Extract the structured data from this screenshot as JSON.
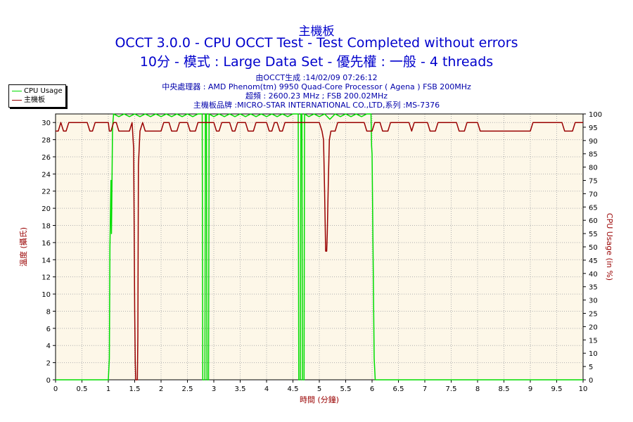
{
  "titles": {
    "line1": "主機板",
    "line2": "OCCT 3.0.0 - CPU OCCT Test - Test Completed without errors",
    "line3": "10分 - 模式 : Large Data Set - 優先權 : 一般 - 4 threads"
  },
  "info": {
    "line1": "由OCCT生成 :14/02/09 07:26:12",
    "line2": "中央處理器 : AMD Phenom(tm) 9950 Quad-Core Processor ( Agena ) FSB 200MHz",
    "line3": "超頻 : 2600.23 MHz ; FSB 200.02MHz",
    "line4": "主機板品牌 :MICRO-STAR INTERNATIONAL CO.,LTD,系列 :MS-7376"
  },
  "legend": {
    "cpu_usage": "CPU Usage",
    "motherboard": "主機板"
  },
  "colors": {
    "title": "#0000cc",
    "info": "#0000aa",
    "cpu_series": "#00dd00",
    "temp_series": "#990000",
    "plot_bg": "#fdf7e8",
    "grid": "#b0b0b0",
    "axis_title": "#990000"
  },
  "chart_data": {
    "type": "line",
    "xlabel": "時間 (分鐘)",
    "ylabel_left": "溫度 (攝氏)",
    "ylabel_right": "CPU Usage (in %)",
    "xlim": [
      0,
      10
    ],
    "ylim_left": [
      0,
      31
    ],
    "ylim_right": [
      0,
      100
    ],
    "x_ticks": [
      "0",
      "0.5",
      "1",
      "1.5",
      "2",
      "2.5",
      "3",
      "3.5",
      "4",
      "4.5",
      "5",
      "5.5",
      "6",
      "6.5",
      "7",
      "7.5",
      "8",
      "8.5",
      "9",
      "9.5",
      "10"
    ],
    "y_ticks_left": [
      "0",
      "2",
      "4",
      "6",
      "8",
      "10",
      "12",
      "14",
      "16",
      "18",
      "20",
      "22",
      "24",
      "26",
      "28",
      "30"
    ],
    "y_ticks_right": [
      "0",
      "5",
      "10",
      "15",
      "20",
      "25",
      "30",
      "35",
      "40",
      "45",
      "50",
      "55",
      "60",
      "65",
      "70",
      "75",
      "80",
      "85",
      "90",
      "95",
      "100"
    ],
    "grid": true,
    "legend_position": "top-left",
    "series": [
      {
        "name": "CPU Usage",
        "axis": "right",
        "points": [
          [
            0,
            0
          ],
          [
            1.0,
            0
          ],
          [
            1.02,
            8
          ],
          [
            1.03,
            50
          ],
          [
            1.05,
            75
          ],
          [
            1.06,
            55
          ],
          [
            1.08,
            95
          ],
          [
            1.1,
            100
          ],
          [
            1.2,
            99
          ],
          [
            1.3,
            100
          ],
          [
            1.4,
            99
          ],
          [
            1.5,
            100
          ],
          [
            1.6,
            99
          ],
          [
            1.7,
            100
          ],
          [
            1.8,
            99
          ],
          [
            1.9,
            100
          ],
          [
            2.0,
            99
          ],
          [
            2.1,
            100
          ],
          [
            2.2,
            99
          ],
          [
            2.3,
            100
          ],
          [
            2.4,
            99
          ],
          [
            2.5,
            100
          ],
          [
            2.6,
            99
          ],
          [
            2.7,
            100
          ],
          [
            2.78,
            100
          ],
          [
            2.79,
            0
          ],
          [
            2.83,
            0
          ],
          [
            2.84,
            100
          ],
          [
            2.86,
            100
          ],
          [
            2.87,
            0
          ],
          [
            2.9,
            0
          ],
          [
            2.91,
            100
          ],
          [
            3.0,
            99
          ],
          [
            3.1,
            100
          ],
          [
            3.2,
            99
          ],
          [
            3.3,
            100
          ],
          [
            3.4,
            99
          ],
          [
            3.5,
            100
          ],
          [
            3.6,
            99
          ],
          [
            3.7,
            100
          ],
          [
            3.8,
            99
          ],
          [
            3.9,
            100
          ],
          [
            4.0,
            99
          ],
          [
            4.1,
            100
          ],
          [
            4.2,
            99
          ],
          [
            4.3,
            100
          ],
          [
            4.4,
            99
          ],
          [
            4.5,
            100
          ],
          [
            4.6,
            100
          ],
          [
            4.61,
            0
          ],
          [
            4.64,
            0
          ],
          [
            4.65,
            100
          ],
          [
            4.67,
            100
          ],
          [
            4.68,
            0
          ],
          [
            4.71,
            0
          ],
          [
            4.72,
            100
          ],
          [
            4.8,
            99
          ],
          [
            4.9,
            100
          ],
          [
            5.0,
            99
          ],
          [
            5.1,
            100
          ],
          [
            5.2,
            98
          ],
          [
            5.3,
            100
          ],
          [
            5.4,
            99
          ],
          [
            5.5,
            100
          ],
          [
            5.6,
            99
          ],
          [
            5.7,
            100
          ],
          [
            5.8,
            99
          ],
          [
            5.9,
            100
          ],
          [
            5.98,
            100
          ],
          [
            5.99,
            88
          ],
          [
            6.0,
            85
          ],
          [
            6.04,
            8
          ],
          [
            6.06,
            0
          ],
          [
            10,
            0
          ]
        ]
      },
      {
        "name": "主機板",
        "axis": "left",
        "points": [
          [
            0,
            29
          ],
          [
            0.05,
            29
          ],
          [
            0.1,
            30
          ],
          [
            0.15,
            29
          ],
          [
            0.2,
            29
          ],
          [
            0.25,
            30
          ],
          [
            0.3,
            30
          ],
          [
            0.6,
            30
          ],
          [
            0.65,
            29
          ],
          [
            0.7,
            29
          ],
          [
            0.75,
            30
          ],
          [
            1.0,
            30
          ],
          [
            1.02,
            29
          ],
          [
            1.05,
            29
          ],
          [
            1.1,
            30
          ],
          [
            1.15,
            30
          ],
          [
            1.2,
            29
          ],
          [
            1.4,
            29
          ],
          [
            1.45,
            30
          ],
          [
            1.48,
            27
          ],
          [
            1.5,
            8
          ],
          [
            1.51,
            2
          ],
          [
            1.52,
            0
          ],
          [
            1.55,
            0
          ],
          [
            1.56,
            5
          ],
          [
            1.57,
            25
          ],
          [
            1.6,
            29
          ],
          [
            1.65,
            30
          ],
          [
            1.7,
            29
          ],
          [
            2.0,
            29
          ],
          [
            2.05,
            30
          ],
          [
            2.15,
            30
          ],
          [
            2.2,
            29
          ],
          [
            2.3,
            29
          ],
          [
            2.35,
            30
          ],
          [
            2.5,
            30
          ],
          [
            2.55,
            29
          ],
          [
            2.65,
            29
          ],
          [
            2.7,
            30
          ],
          [
            3.0,
            30
          ],
          [
            3.05,
            29
          ],
          [
            3.1,
            29
          ],
          [
            3.15,
            30
          ],
          [
            3.3,
            30
          ],
          [
            3.35,
            29
          ],
          [
            3.4,
            29
          ],
          [
            3.45,
            30
          ],
          [
            3.6,
            30
          ],
          [
            3.65,
            29
          ],
          [
            3.75,
            29
          ],
          [
            3.8,
            30
          ],
          [
            4.0,
            30
          ],
          [
            4.05,
            29
          ],
          [
            4.1,
            29
          ],
          [
            4.15,
            30
          ],
          [
            4.2,
            30
          ],
          [
            4.25,
            29
          ],
          [
            4.3,
            29
          ],
          [
            4.35,
            30
          ],
          [
            5.0,
            30
          ],
          [
            5.05,
            29
          ],
          [
            5.08,
            28
          ],
          [
            5.1,
            22
          ],
          [
            5.12,
            15
          ],
          [
            5.14,
            15
          ],
          [
            5.15,
            17
          ],
          [
            5.17,
            23
          ],
          [
            5.19,
            28
          ],
          [
            5.22,
            29
          ],
          [
            5.3,
            29
          ],
          [
            5.35,
            30
          ],
          [
            5.85,
            30
          ],
          [
            5.9,
            29
          ],
          [
            6.0,
            29
          ],
          [
            6.05,
            30
          ],
          [
            6.15,
            30
          ],
          [
            6.2,
            29
          ],
          [
            6.3,
            29
          ],
          [
            6.35,
            30
          ],
          [
            6.7,
            30
          ],
          [
            6.75,
            29
          ],
          [
            6.8,
            30
          ],
          [
            7.05,
            30
          ],
          [
            7.1,
            29
          ],
          [
            7.2,
            29
          ],
          [
            7.25,
            30
          ],
          [
            7.6,
            30
          ],
          [
            7.65,
            29
          ],
          [
            7.75,
            29
          ],
          [
            7.8,
            30
          ],
          [
            8.0,
            30
          ],
          [
            8.05,
            29
          ],
          [
            9.0,
            29
          ],
          [
            9.05,
            30
          ],
          [
            9.6,
            30
          ],
          [
            9.65,
            29
          ],
          [
            9.8,
            29
          ],
          [
            9.85,
            30
          ],
          [
            10,
            30
          ]
        ]
      }
    ]
  }
}
